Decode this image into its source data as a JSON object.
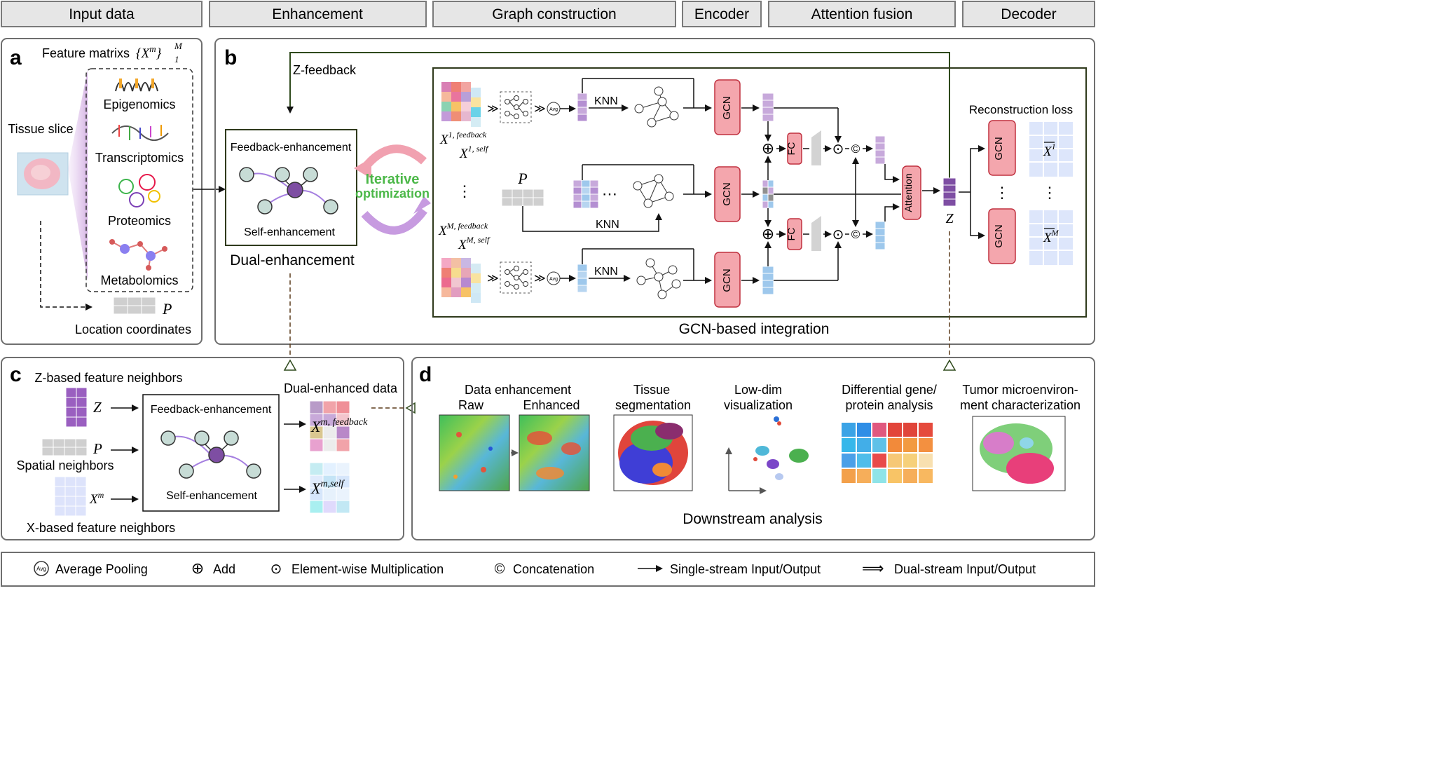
{
  "header": {
    "items": [
      "Input data",
      "Enhancement",
      "Graph construction",
      "Encoder",
      "Attention fusion",
      "Decoder"
    ]
  },
  "panel_a": {
    "letter": "a",
    "feature_matrices_label": "Feature matrixs",
    "feature_matrices_math": "{X",
    "feature_matrices_sup": "m",
    "feature_matrices_tail": "}",
    "feature_matrices_upper": "M",
    "feature_matrices_lower": "1",
    "tissue_slice": "Tissue slice",
    "modalities": [
      "Epigenomics",
      "Transcriptomics",
      "Proteomics",
      "Metabolomics"
    ],
    "p_symbol": "P",
    "location_coordinates": "Location coordinates"
  },
  "panel_b": {
    "letter": "b",
    "z_feedback": "Z-feedback",
    "feedback_enhancement": "Feedback-enhancement",
    "self_enhancement": "Self-enhancement",
    "dual_enhancement": "Dual-enhancement",
    "iterative": "Iterative",
    "optimization": "optimization",
    "x1_feedback": "X",
    "x1_feedback_sup": "1, feedback",
    "x1_self": "X",
    "x1_self_sup": "1, self",
    "xm_feedback": "X",
    "xm_feedback_sup": "M, feedback",
    "xm_self": "X",
    "xm_self_sup": "M, self",
    "p_symbol": "P",
    "avg": "Avg",
    "knn": "KNN",
    "gcn": "GCN",
    "fc": "FC",
    "attention": "Attention",
    "z_symbol": "Z",
    "reconstruction_loss": "Reconstruction loss",
    "xbar1": "X",
    "xbar1_sup": "1",
    "xbarM": "X",
    "xbarM_sup": "M",
    "ellipsis_v": "⋮",
    "ellipsis_h": "⋯",
    "add_symbol": "⊕",
    "mul_symbol": "⊙",
    "concat_symbol": "©",
    "integration_label": "GCN-based integration"
  },
  "panel_c": {
    "letter": "c",
    "z_neighbors": "Z-based feature neighbors",
    "z_symbol": "Z",
    "p_symbol": "P",
    "spatial_neighbors": "Spatial neighbors",
    "xm_symbol": "X",
    "xm_sup": "m",
    "x_neighbors": "X-based feature neighbors",
    "feedback_enhancement": "Feedback-enhancement",
    "self_enhancement": "Self-enhancement",
    "dual_enhanced_data": "Dual-enhanced data",
    "out_feedback": "X",
    "out_feedback_sup": "m, feedback",
    "out_self": "X",
    "out_self_sup": "m,self"
  },
  "panel_d": {
    "letter": "d",
    "data_enhancement": "Data enhancement",
    "raw": "Raw",
    "enhanced": "Enhanced",
    "tissue_seg_1": "Tissue",
    "tissue_seg_2": "segmentation",
    "low_dim_1": "Low-dim",
    "low_dim_2": "visualization",
    "diff_1": "Differential gene/",
    "diff_2": "protein analysis",
    "tumor_1": "Tumor microenviron-",
    "tumor_2": "ment characterization",
    "downstream": "Downstream analysis"
  },
  "legend": {
    "avg_icon": "Avg",
    "avg": "Average Pooling",
    "add": "Add",
    "mul": "Element-wise Multiplication",
    "concat": "Concatenation",
    "single": "Single-stream Input/Output",
    "dual": "Dual-stream Input/Output"
  },
  "colors": {
    "gcn_fill": "#f4a6ad",
    "gcn_stroke": "#c0303f",
    "purple": "#8e5bb5",
    "light_purple": "#c7a9db",
    "blue": "#9ec8ec",
    "header_fill": "#e6e6e6",
    "panel_stroke": "#6f6f6f",
    "iterative_green": "#4cb849",
    "node_fill": "#c7dcd6"
  }
}
